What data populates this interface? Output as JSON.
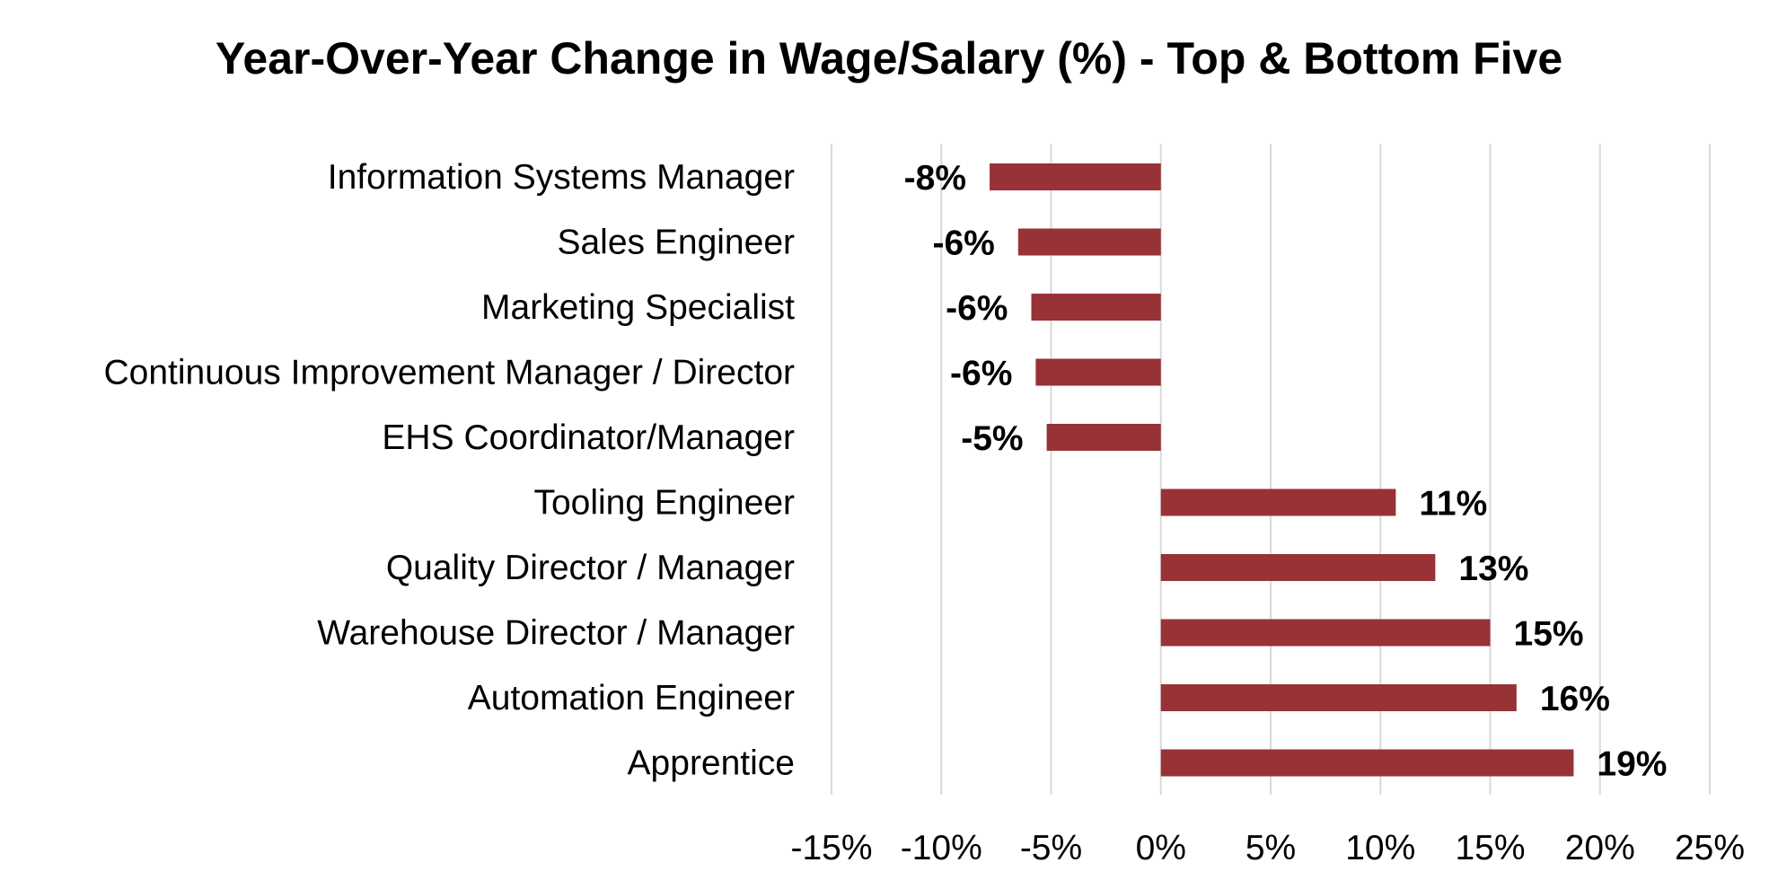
{
  "chart_data": {
    "type": "bar",
    "orientation": "horizontal",
    "title": "Year-Over-Year Change in Wage/Salary (%) - Top & Bottom Five",
    "xlabel": "",
    "ylabel": "",
    "categories": [
      "Information Systems Manager",
      "Sales Engineer",
      "Marketing Specialist",
      "Continuous Improvement Manager / Director",
      "EHS Coordinator/Manager",
      "Tooling Engineer",
      "Quality Director / Manager",
      "Warehouse Director / Manager",
      "Automation Engineer",
      "Apprentice"
    ],
    "values": [
      -7.8,
      -6.5,
      -5.9,
      -5.7,
      -5.2,
      10.7,
      12.5,
      15.0,
      16.2,
      18.8
    ],
    "data_labels": [
      "-8%",
      "-6%",
      "-6%",
      "-6%",
      "-5%",
      "11%",
      "13%",
      "15%",
      "16%",
      "19%"
    ],
    "xlim": [
      -15,
      25
    ],
    "xticks": [
      -15,
      -10,
      -5,
      0,
      5,
      10,
      15,
      20,
      25
    ],
    "xtick_labels": [
      "-15%",
      "-10%",
      "-5%",
      "0%",
      "5%",
      "10%",
      "15%",
      "20%",
      "25%"
    ],
    "grid": true,
    "legend": "none",
    "bar_color": "#973236"
  }
}
